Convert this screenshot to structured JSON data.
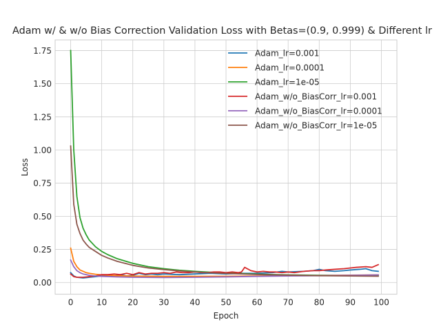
{
  "chart_data": {
    "type": "line",
    "title": "Adam w/ & w/o Bias Correction Validation Loss with Betas=(0.9, 0.999) & Different lr",
    "xlabel": "Epoch",
    "ylabel": "Loss",
    "xlim": [
      -5,
      105
    ],
    "ylim": [
      -0.0875,
      1.83
    ],
    "xticks": [
      0,
      10,
      20,
      30,
      40,
      50,
      60,
      70,
      80,
      90,
      100
    ],
    "yticks": [
      0.0,
      0.25,
      0.5,
      0.75,
      1.0,
      1.25,
      1.5,
      1.75
    ],
    "ytick_labels": [
      "0.00",
      "0.25",
      "0.50",
      "0.75",
      "1.00",
      "1.25",
      "1.50",
      "1.75"
    ],
    "grid": true,
    "legend_position": "upper-right",
    "series": [
      {
        "name": "Adam_lr=0.001",
        "color": "#1f77b4",
        "x": [
          0,
          1,
          2,
          4,
          6,
          8,
          10,
          12,
          14,
          16,
          18,
          20,
          22,
          24,
          26,
          28,
          30,
          35,
          40,
          45,
          50,
          55,
          60,
          65,
          68,
          70,
          75,
          78,
          80,
          82,
          85,
          88,
          90,
          93,
          95,
          97,
          99
        ],
        "y": [
          0.075,
          0.05,
          0.04,
          0.035,
          0.04,
          0.045,
          0.05,
          0.055,
          0.05,
          0.06,
          0.05,
          0.055,
          0.07,
          0.06,
          0.065,
          0.06,
          0.065,
          0.06,
          0.065,
          0.07,
          0.065,
          0.07,
          0.07,
          0.075,
          0.085,
          0.08,
          0.085,
          0.09,
          0.1,
          0.09,
          0.085,
          0.09,
          0.095,
          0.1,
          0.105,
          0.09,
          0.085
        ]
      },
      {
        "name": "Adam_lr=0.0001",
        "color": "#ff7f0e",
        "x": [
          0,
          1,
          2,
          3,
          4,
          5,
          6,
          8,
          10,
          15,
          20,
          30,
          40,
          50,
          60,
          70,
          80,
          90,
          99
        ],
        "y": [
          0.26,
          0.16,
          0.12,
          0.095,
          0.085,
          0.075,
          0.07,
          0.063,
          0.058,
          0.052,
          0.049,
          0.047,
          0.047,
          0.048,
          0.05,
          0.052,
          0.054,
          0.056,
          0.058
        ]
      },
      {
        "name": "Adam_lr=1e-05",
        "color": "#2ca02c",
        "x": [
          0,
          1,
          2,
          3,
          4,
          5,
          6,
          8,
          10,
          12,
          15,
          20,
          25,
          30,
          35,
          40,
          45,
          50,
          55,
          60,
          65,
          70,
          80,
          90,
          99
        ],
        "y": [
          1.75,
          1.0,
          0.65,
          0.49,
          0.41,
          0.36,
          0.32,
          0.27,
          0.235,
          0.21,
          0.18,
          0.145,
          0.12,
          0.105,
          0.093,
          0.085,
          0.078,
          0.073,
          0.068,
          0.064,
          0.061,
          0.058,
          0.055,
          0.053,
          0.052
        ]
      },
      {
        "name": "Adam_w/o_BiasCorr_lr=0.001",
        "color": "#d62728",
        "x": [
          0,
          1,
          2,
          4,
          6,
          8,
          10,
          12,
          14,
          16,
          18,
          20,
          22,
          24,
          26,
          28,
          30,
          32,
          34,
          36,
          38,
          40,
          42,
          44,
          46,
          48,
          50,
          52,
          54,
          55,
          56,
          58,
          60,
          62,
          64,
          66,
          68,
          70,
          72,
          75,
          78,
          80,
          82,
          85,
          88,
          90,
          92,
          95,
          97,
          99
        ],
        "y": [
          0.065,
          0.045,
          0.04,
          0.04,
          0.045,
          0.05,
          0.06,
          0.06,
          0.065,
          0.06,
          0.07,
          0.06,
          0.075,
          0.065,
          0.07,
          0.07,
          0.075,
          0.07,
          0.08,
          0.075,
          0.075,
          0.08,
          0.075,
          0.075,
          0.08,
          0.08,
          0.075,
          0.08,
          0.075,
          0.08,
          0.115,
          0.09,
          0.08,
          0.085,
          0.08,
          0.08,
          0.075,
          0.08,
          0.075,
          0.085,
          0.09,
          0.09,
          0.095,
          0.1,
          0.105,
          0.11,
          0.115,
          0.12,
          0.115,
          0.135
        ]
      },
      {
        "name": "Adam_w/o_BiasCorr_lr=0.0001",
        "color": "#9467bd",
        "x": [
          0,
          1,
          2,
          3,
          4,
          5,
          6,
          8,
          10,
          15,
          20,
          30,
          40,
          50,
          60,
          70,
          80,
          90,
          99
        ],
        "y": [
          0.17,
          0.12,
          0.09,
          0.075,
          0.065,
          0.06,
          0.055,
          0.05,
          0.047,
          0.043,
          0.04,
          0.038,
          0.04,
          0.043,
          0.047,
          0.05,
          0.052,
          0.055,
          0.058
        ]
      },
      {
        "name": "Adam_w/o_BiasCorr_lr=1e-05",
        "color": "#8c564b",
        "x": [
          0,
          1,
          2,
          3,
          4,
          5,
          6,
          8,
          10,
          12,
          15,
          20,
          25,
          30,
          35,
          40,
          45,
          50,
          55,
          60,
          65,
          70,
          80,
          90,
          99
        ],
        "y": [
          1.03,
          0.59,
          0.44,
          0.37,
          0.32,
          0.29,
          0.265,
          0.235,
          0.205,
          0.185,
          0.16,
          0.13,
          0.11,
          0.098,
          0.088,
          0.08,
          0.074,
          0.069,
          0.065,
          0.061,
          0.058,
          0.056,
          0.052,
          0.05,
          0.048
        ]
      }
    ]
  }
}
